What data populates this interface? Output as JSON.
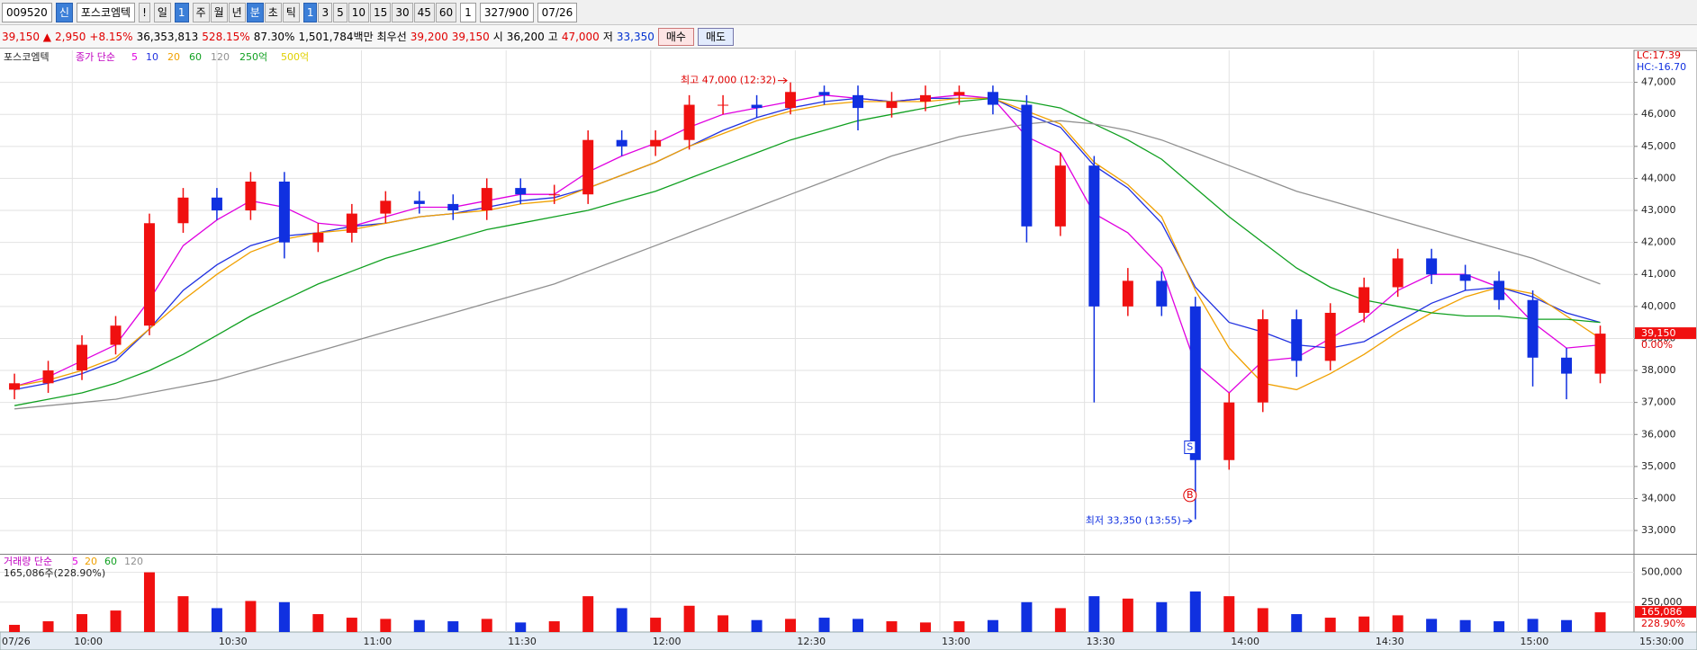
{
  "toolbar": {
    "code": "009520",
    "badge": "신",
    "name": "포스코엠텍",
    "alert": "!",
    "period": "일",
    "period_n": "1",
    "tabs": [
      "주",
      "월",
      "년",
      "분",
      "초",
      "틱"
    ],
    "intervals": [
      "1",
      "3",
      "5",
      "10",
      "15",
      "30",
      "45",
      "60"
    ],
    "count": "1",
    "range": "327/900",
    "date": "07/26"
  },
  "quote": {
    "price": "39,150 ▲",
    "change": "2,950",
    "change_pct": "+8.15%",
    "volume": "36,353,813",
    "volume_pct": "528.15%",
    "ratio": "87.30%",
    "amount": "1,501,784백만",
    "best_label": "최우선",
    "ask": "39,200",
    "bid": "39,150",
    "open_label": "시",
    "open": "36,200",
    "high_label": "고",
    "high": "47,000",
    "low_label": "저",
    "low": "33,350",
    "buy": "매수",
    "sell": "매도"
  },
  "chart_data": {
    "type": "candlestick",
    "stock_label": "포스코엠텍",
    "ma_label": "종가 단순",
    "x": [
      588,
      595,
      602,
      609,
      616,
      623,
      630,
      637,
      644,
      651,
      658,
      665,
      672,
      679,
      686,
      693,
      700,
      707,
      714,
      721,
      728,
      735,
      742,
      749,
      756,
      763,
      770,
      777,
      784,
      791,
      798,
      805,
      812,
      819,
      826,
      833,
      840,
      847,
      854,
      861,
      868,
      875,
      882,
      889,
      896,
      903,
      910,
      917
    ],
    "open": [
      37400,
      37600,
      38000,
      38800,
      39400,
      42600,
      43400,
      43000,
      43900,
      42000,
      42300,
      42900,
      43300,
      43200,
      43000,
      43700,
      43500,
      43500,
      45200,
      45000,
      45200,
      46300,
      46300,
      46200,
      46700,
      46600,
      46200,
      46400,
      46600,
      46700,
      46300,
      42500,
      44400,
      40000,
      40800,
      40000,
      35200,
      37000,
      39600,
      38300,
      39800,
      40600,
      41500,
      41000,
      40800,
      40200,
      38400,
      37900
    ],
    "high": [
      37900,
      38300,
      39100,
      39700,
      42900,
      43700,
      43700,
      44200,
      44200,
      42600,
      43200,
      43600,
      43600,
      43500,
      44000,
      44000,
      43800,
      45500,
      45500,
      45500,
      46600,
      46600,
      46600,
      47000,
      46900,
      46900,
      46700,
      46900,
      46900,
      46900,
      46600,
      44800,
      44700,
      41200,
      41100,
      40300,
      37300,
      39900,
      39900,
      40100,
      40900,
      41800,
      41800,
      41300,
      41100,
      40500,
      38700,
      39400
    ],
    "low": [
      37100,
      37300,
      37700,
      38500,
      39100,
      42300,
      42700,
      42700,
      41500,
      41700,
      42000,
      42600,
      42900,
      42700,
      42700,
      43200,
      43200,
      43200,
      44700,
      44700,
      44900,
      46000,
      45900,
      46000,
      46300,
      45500,
      45900,
      46100,
      46300,
      46000,
      42000,
      42200,
      37000,
      39700,
      39700,
      33350,
      34900,
      36700,
      37800,
      38000,
      39500,
      40300,
      40700,
      40500,
      39900,
      37500,
      37100,
      37600
    ],
    "close": [
      37600,
      38000,
      38800,
      39400,
      42600,
      43400,
      43000,
      43900,
      42000,
      42300,
      42900,
      43300,
      43200,
      43000,
      43700,
      43500,
      43500,
      45200,
      45000,
      45200,
      46300,
      46300,
      46200,
      46700,
      46600,
      46200,
      46400,
      46600,
      46700,
      46300,
      42500,
      44400,
      40000,
      40800,
      40000,
      35200,
      37000,
      39600,
      38300,
      39800,
      40600,
      41500,
      41000,
      40800,
      40200,
      38400,
      37900,
      39150
    ],
    "series": [
      {
        "name": "5",
        "color": "#e000e0",
        "values": [
          37500,
          37800,
          38300,
          38800,
          40200,
          41900,
          42700,
          43300,
          43100,
          42600,
          42500,
          42800,
          43100,
          43100,
          43300,
          43500,
          43500,
          44200,
          44700,
          45100,
          45600,
          46000,
          46200,
          46400,
          46600,
          46500,
          46400,
          46500,
          46600,
          46500,
          45300,
          44800,
          42900,
          42300,
          41200,
          38200,
          37300,
          38300,
          38400,
          39000,
          39600,
          40500,
          41000,
          41000,
          40600,
          39500,
          38700,
          38800
        ]
      },
      {
        "name": "10",
        "color": "#2030e0",
        "values": [
          37400,
          37600,
          37900,
          38300,
          39300,
          40500,
          41300,
          41900,
          42200,
          42300,
          42500,
          42600,
          42800,
          42900,
          43100,
          43300,
          43400,
          43700,
          44100,
          44500,
          45000,
          45500,
          45900,
          46200,
          46400,
          46500,
          46400,
          46500,
          46500,
          46500,
          46000,
          45600,
          44400,
          43700,
          42600,
          40600,
          39500,
          39200,
          38800,
          38700,
          38900,
          39500,
          40100,
          40500,
          40600,
          40300,
          39800,
          39500
        ]
      },
      {
        "name": "20",
        "color": "#f0a000",
        "values": [
          37500,
          37700,
          38000,
          38400,
          39300,
          40200,
          41000,
          41700,
          42100,
          42300,
          42400,
          42600,
          42800,
          42900,
          43000,
          43200,
          43300,
          43700,
          44100,
          44500,
          45000,
          45400,
          45800,
          46100,
          46300,
          46400,
          46400,
          46400,
          46500,
          46500,
          46100,
          45700,
          44500,
          43800,
          42800,
          40500,
          38700,
          37600,
          37400,
          37900,
          38500,
          39200,
          39800,
          40300,
          40600,
          40400,
          39700,
          39000
        ]
      },
      {
        "name": "60",
        "color": "#10a020",
        "values": [
          36900,
          37100,
          37300,
          37600,
          38000,
          38500,
          39100,
          39700,
          40200,
          40700,
          41100,
          41500,
          41800,
          42100,
          42400,
          42600,
          42800,
          43000,
          43300,
          43600,
          44000,
          44400,
          44800,
          45200,
          45500,
          45800,
          46000,
          46200,
          46400,
          46500,
          46400,
          46200,
          45700,
          45200,
          44600,
          43700,
          42800,
          42000,
          41200,
          40600,
          40200,
          40000,
          39800,
          39700,
          39700,
          39600,
          39600,
          39500
        ]
      },
      {
        "name": "120",
        "color": "#909090",
        "values": [
          36800,
          36900,
          37000,
          37100,
          37300,
          37500,
          37700,
          38000,
          38300,
          38600,
          38900,
          39200,
          39500,
          39800,
          40100,
          40400,
          40700,
          41100,
          41500,
          41900,
          42300,
          42700,
          43100,
          43500,
          43900,
          44300,
          44700,
          45000,
          45300,
          45500,
          45700,
          45800,
          45700,
          45500,
          45200,
          44800,
          44400,
          44000,
          43600,
          43300,
          43000,
          42700,
          42400,
          42100,
          41800,
          41500,
          41100,
          40700
        ]
      }
    ],
    "extra_legend": [
      {
        "name": "250억",
        "color": "#10a020"
      },
      {
        "name": "500억",
        "color": "#e0d000"
      }
    ],
    "indicators": [
      "LC:17.39",
      "HC:-16.70"
    ],
    "high_note": "최고 47,000 (12:32)",
    "low_note": "최저 33,350 (13:55)",
    "signals": [
      "S",
      "B"
    ],
    "last_price": {
      "label": "39,150",
      "change": "0.00%"
    },
    "ylim": [
      32300,
      48000
    ],
    "yticks": [
      {
        "value": 33000,
        "label": "33,000"
      },
      {
        "value": 34000,
        "label": "34,000"
      },
      {
        "value": 35000,
        "label": "35,000"
      },
      {
        "value": 36000,
        "label": "36,000"
      },
      {
        "value": 37000,
        "label": "37,000"
      },
      {
        "value": 38000,
        "label": "38,000"
      },
      {
        "value": 39000,
        "label": "39,000"
      },
      {
        "value": 40000,
        "label": "40,000"
      },
      {
        "value": 41000,
        "label": "41,000"
      },
      {
        "value": 42000,
        "label": "42,000"
      },
      {
        "value": 43000,
        "label": "43,000"
      },
      {
        "value": 44000,
        "label": "44,000"
      },
      {
        "value": 45000,
        "label": "45,000"
      },
      {
        "value": 46000,
        "label": "46,000"
      },
      {
        "value": 47000,
        "label": "47,000"
      }
    ],
    "xlim": [
      585,
      924
    ],
    "xticks": [
      {
        "value": 600,
        "label": "10:00"
      },
      {
        "value": 630,
        "label": "10:30"
      },
      {
        "value": 660,
        "label": "11:00"
      },
      {
        "value": 690,
        "label": "11:30"
      },
      {
        "value": 720,
        "label": "12:00"
      },
      {
        "value": 750,
        "label": "12:30"
      },
      {
        "value": 780,
        "label": "13:00"
      },
      {
        "value": 810,
        "label": "13:30"
      },
      {
        "value": 840,
        "label": "14:00"
      },
      {
        "value": 870,
        "label": "14:30"
      },
      {
        "value": 900,
        "label": "15:00"
      }
    ],
    "x_start_label": "07/26",
    "x_end_label": "15:30:00",
    "grid": true,
    "volume": {
      "name": "거래량 단순",
      "ma": [
        {
          "name": "5",
          "color": "#e000e0"
        },
        {
          "name": "20",
          "color": "#f0a000"
        },
        {
          "name": "60",
          "color": "#10a020"
        },
        {
          "name": "120",
          "color": "#909090"
        }
      ],
      "current": "165,086주(228.90%)",
      "last_label": "165,086",
      "last_pct": "228.90%",
      "values": [
        60000,
        90000,
        150000,
        180000,
        500000,
        300000,
        200000,
        260000,
        250000,
        150000,
        120000,
        110000,
        100000,
        90000,
        110000,
        80000,
        90000,
        300000,
        200000,
        120000,
        220000,
        140000,
        100000,
        110000,
        120000,
        110000,
        90000,
        80000,
        90000,
        100000,
        250000,
        200000,
        300000,
        280000,
        250000,
        340000,
        300000,
        200000,
        150000,
        120000,
        130000,
        140000,
        110000,
        100000,
        90000,
        110000,
        100000,
        165086
      ],
      "ylim": [
        0,
        640000
      ],
      "yticks": [
        {
          "value": 250000,
          "label": "250,000"
        },
        {
          "value": 500000,
          "label": "500,000"
        }
      ]
    }
  }
}
